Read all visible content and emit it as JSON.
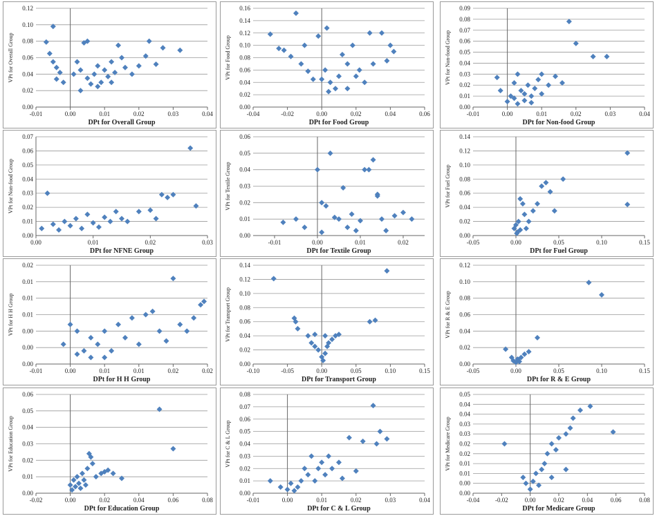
{
  "chart_data": [
    {
      "type": "scatter",
      "xlabel": "DPt for Overall Group",
      "ylabel": "VPt for Overall Group",
      "color": "#4f81bd",
      "grid": true,
      "xlim": [
        -0.01,
        0.04
      ],
      "xticks": [
        -0.01,
        {
          "value": 0,
          "label": "0.00"
        },
        0.01,
        0.02,
        0.03,
        0.04
      ],
      "ylim": [
        0,
        0.12
      ],
      "yticks": [
        {
          "value": 0,
          "label": "0.00"
        },
        0.02,
        0.04,
        0.06,
        0.08,
        {
          "value": 0.1,
          "label": "0.10"
        },
        0.12
      ],
      "x": [
        -0.005,
        -0.007,
        -0.006,
        -0.005,
        -0.004,
        -0.003,
        -0.004,
        -0.002,
        0.002,
        0.003,
        0.004,
        0.005,
        0.003,
        0.005,
        0.006,
        0.007,
        0.008,
        0.009,
        0.01,
        0.011,
        0.012,
        0.013,
        0.014,
        0.015,
        0.016,
        0.018,
        0.02,
        0.022,
        0.023,
        0.025,
        0.027,
        0.032,
        0.001,
        0.008,
        0.012
      ],
      "values": [
        0.098,
        0.079,
        0.065,
        0.055,
        0.048,
        0.042,
        0.034,
        0.03,
        0.055,
        0.045,
        0.078,
        0.08,
        0.02,
        0.035,
        0.028,
        0.04,
        0.05,
        0.03,
        0.045,
        0.037,
        0.055,
        0.042,
        0.075,
        0.06,
        0.048,
        0.04,
        0.05,
        0.062,
        0.08,
        0.052,
        0.072,
        0.069,
        0.04,
        0.025,
        0.03
      ]
    },
    {
      "type": "scatter",
      "xlabel": "DPt for Food Group",
      "ylabel": "VPt for Food Group",
      "color": "#4f81bd",
      "grid": true,
      "xlim": [
        -0.04,
        0.06
      ],
      "xticks": [
        -0.04,
        -0.02,
        {
          "value": 0,
          "label": "0.00"
        },
        0.02,
        0.04,
        0.06
      ],
      "ylim": [
        0,
        0.16
      ],
      "yticks": [
        {
          "value": 0,
          "label": "0.00"
        },
        0.02,
        0.04,
        0.06,
        0.08,
        {
          "value": 0.1,
          "label": "0.10"
        },
        0.12,
        0.14,
        0.16
      ],
      "x": [
        -0.03,
        -0.015,
        -0.022,
        -0.018,
        -0.012,
        -0.008,
        -0.005,
        -0.01,
        -0.002,
        0.003,
        0.002,
        0.005,
        0.008,
        0.01,
        0.012,
        0.015,
        0.018,
        0.02,
        0.022,
        0.025,
        0.028,
        0.03,
        0.035,
        0.04,
        0.042,
        0.038,
        0.004,
        0,
        -0.025,
        0.015
      ],
      "values": [
        0.118,
        0.152,
        0.092,
        0.082,
        0.07,
        0.058,
        0.045,
        0.1,
        0.115,
        0.128,
        0.06,
        0.04,
        0.03,
        0.05,
        0.085,
        0.07,
        0.1,
        0.05,
        0.06,
        0.04,
        0.12,
        0.07,
        0.12,
        0.1,
        0.09,
        0.075,
        0.025,
        0.045,
        0.095,
        0.03
      ]
    },
    {
      "type": "scatter",
      "xlabel": "DPt for Non-food Group",
      "ylabel": "VPt for Non-food Group",
      "color": "#4f81bd",
      "grid": true,
      "xlim": [
        -0.01,
        0.04
      ],
      "xticks": [
        -0.01,
        {
          "value": 0,
          "label": "0.00"
        },
        0.01,
        0.02,
        0.03,
        0.04
      ],
      "ylim": [
        0,
        0.09
      ],
      "yticks": [
        {
          "value": 0,
          "label": "0.00"
        },
        0.01,
        0.02,
        0.03,
        0.04,
        0.05,
        0.06,
        0.07,
        0.08,
        0.09
      ],
      "x": [
        -0.003,
        -0.002,
        0,
        0.001,
        0.002,
        0.002,
        0.003,
        0.004,
        0.005,
        0.005,
        0.006,
        0.007,
        0.008,
        0.009,
        0.01,
        0.01,
        0.012,
        0.014,
        0.016,
        0.018,
        0.02,
        0.025,
        0.029,
        0.003,
        0.007
      ],
      "values": [
        0.027,
        0.015,
        0.005,
        0.01,
        0.022,
        0.008,
        0.003,
        0.015,
        0.012,
        0.006,
        0.02,
        0.01,
        0.017,
        0.025,
        0.03,
        0.012,
        0.02,
        0.028,
        0.022,
        0.078,
        0.058,
        0.046,
        0.046,
        0.03,
        0.004
      ]
    },
    {
      "type": "scatter",
      "xlabel": "DPt for NFNE Group",
      "ylabel": "VPt for Non-food Group",
      "color": "#4f81bd",
      "grid": true,
      "xlim": [
        0,
        0.03
      ],
      "xticks": [
        {
          "value": 0,
          "label": "0.00"
        },
        0.01,
        0.02,
        0.03
      ],
      "ylim": [
        0,
        0.07
      ],
      "yticks": [
        {
          "value": 0,
          "label": "0.00"
        },
        0.01,
        0.02,
        0.03,
        0.04,
        0.05,
        0.06,
        0.07
      ],
      "x": [
        0.001,
        0.002,
        0.003,
        0.004,
        0.005,
        0.006,
        0.007,
        0.008,
        0.009,
        0.01,
        0.011,
        0.012,
        0.013,
        0.014,
        0.015,
        0.016,
        0.018,
        0.02,
        0.021,
        0.023,
        0.024,
        0.028,
        0.022,
        0.027
      ],
      "values": [
        0.005,
        0.03,
        0.008,
        0.004,
        0.01,
        0.007,
        0.012,
        0.005,
        0.015,
        0.009,
        0.006,
        0.013,
        0.01,
        0.017,
        0.012,
        0.01,
        0.017,
        0.018,
        0.012,
        0.027,
        0.029,
        0.021,
        0.029,
        0.062
      ]
    },
    {
      "type": "scatter",
      "xlabel": "DPt for Textile Group",
      "ylabel": "VPt for Textile Group",
      "color": "#4f81bd",
      "grid": true,
      "xlim": [
        -0.015,
        0.025
      ],
      "xticks": [
        -0.01,
        {
          "value": 0,
          "label": "0.00"
        },
        0.01,
        0.02
      ],
      "ylim": [
        0,
        0.06
      ],
      "yticks": [
        {
          "value": 0,
          "label": "0.00"
        },
        0.01,
        0.02,
        0.03,
        0.04,
        0.05,
        0.06
      ],
      "x": [
        -0.008,
        -0.005,
        -0.003,
        0,
        0.001,
        0.002,
        0.003,
        0.004,
        0.005,
        0.006,
        0.007,
        0.008,
        0.01,
        0.012,
        0.013,
        0.014,
        0.015,
        0.016,
        0.018,
        0.02,
        0.022,
        0.011,
        0.014,
        0.001,
        0.009
      ],
      "values": [
        0.008,
        0.01,
        0.005,
        0.04,
        0.002,
        0.018,
        0.05,
        0.011,
        0.01,
        0.029,
        0.005,
        0.013,
        0.009,
        0.04,
        0.046,
        0.025,
        0.01,
        0.003,
        0.012,
        0.014,
        0.01,
        0.04,
        0.024,
        0.02,
        0.003
      ]
    },
    {
      "type": "scatter",
      "xlabel": "DPt for Fuel Group",
      "ylabel": "VPt for Fuel Group",
      "color": "#4f81bd",
      "grid": true,
      "xlim": [
        -0.05,
        0.15
      ],
      "xticks": [
        -0.05,
        {
          "value": 0,
          "label": "0.00"
        },
        0.05,
        {
          "value": 0.1,
          "label": "0.10"
        },
        0.15
      ],
      "ylim": [
        0,
        0.14
      ],
      "yticks": [
        {
          "value": 0,
          "label": "0.00"
        },
        0.02,
        0.04,
        0.06,
        0.08,
        {
          "value": 0.1,
          "label": "0.10"
        },
        0.12,
        0.14
      ],
      "x": [
        -0.002,
        0,
        0.002,
        0.003,
        0.005,
        0.008,
        0.01,
        0.012,
        0.015,
        0.02,
        0.025,
        0.03,
        0.035,
        0.04,
        0.045,
        0.055,
        0.13,
        0.13,
        0.005,
        0.001
      ],
      "values": [
        0.01,
        0.015,
        0.005,
        0.02,
        0.052,
        0.045,
        0.03,
        0.01,
        0.02,
        0.035,
        0.045,
        0.07,
        0.075,
        0.062,
        0.035,
        0.08,
        0.117,
        0.044,
        0.008,
        0.003
      ]
    },
    {
      "type": "scatter",
      "xlabel": "DPt for H H Group",
      "ylabel": "VPt for H H Group",
      "color": "#4f81bd",
      "grid": true,
      "xlim": [
        -0.005,
        0.02
      ],
      "xticks": [
        {
          "value": -0.005,
          "label": "-0.01"
        },
        {
          "value": 0,
          "label": "0.00"
        },
        {
          "value": 0.005,
          "label": "0.01"
        },
        0.01,
        {
          "value": 0.015,
          "label": "0.02"
        },
        0.02
      ],
      "ylim": [
        0,
        0.015
      ],
      "yticks": [
        {
          "value": 0,
          "label": "0.00"
        },
        {
          "value": 0.0025,
          "label": "0.00"
        },
        {
          "value": 0.005,
          "label": "0.00"
        },
        {
          "value": 0.0075,
          "label": "0.01"
        },
        0.01,
        {
          "value": 0.0125,
          "label": "0.01"
        },
        {
          "value": 0.015,
          "label": "0.02"
        }
      ],
      "x": [
        -0.001,
        0,
        0.001,
        0.002,
        0.003,
        0.003,
        0.004,
        0.005,
        0.005,
        0.006,
        0.007,
        0.008,
        0.009,
        0.01,
        0.011,
        0.012,
        0.013,
        0.014,
        0.015,
        0.016,
        0.017,
        0.018,
        0.019,
        0.0195,
        0.001
      ],
      "values": [
        0.003,
        0.006,
        0.005,
        0.002,
        0.001,
        0.004,
        0.003,
        0.005,
        0.001,
        0.002,
        0.006,
        0.004,
        0.007,
        0.003,
        0.0075,
        0.008,
        0.005,
        0.0035,
        0.013,
        0.006,
        0.005,
        0.007,
        0.009,
        0.0095,
        0.0015
      ]
    },
    {
      "type": "scatter",
      "xlabel": "DPt for Transport Group",
      "ylabel": "VPt for Transport Group",
      "color": "#4f81bd",
      "grid": true,
      "xlim": [
        -0.1,
        0.15
      ],
      "xticks": [
        {
          "value": -0.1,
          "label": "-0.10"
        },
        -0.05,
        {
          "value": 0,
          "label": "0.00"
        },
        0.05,
        {
          "value": 0.1,
          "label": "0.10"
        },
        0.15
      ],
      "ylim": [
        0,
        0.14
      ],
      "yticks": [
        {
          "value": 0,
          "label": "0.00"
        },
        0.02,
        0.04,
        0.06,
        0.08,
        {
          "value": 0.1,
          "label": "0.10"
        },
        0.12,
        0.14
      ],
      "x": [
        -0.07,
        -0.04,
        -0.038,
        -0.035,
        -0.02,
        -0.015,
        -0.01,
        -0.005,
        0,
        0.002,
        0.005,
        0.008,
        0.01,
        0.015,
        0.02,
        0.025,
        0.07,
        0.078,
        0.095,
        -0.01,
        0.005
      ],
      "values": [
        0.121,
        0.065,
        0.06,
        0.05,
        0.04,
        0.03,
        0.025,
        0.02,
        0.01,
        0.005,
        0.015,
        0.025,
        0.03,
        0.035,
        0.04,
        0.042,
        0.06,
        0.062,
        0.132,
        0.042,
        0.04
      ]
    },
    {
      "type": "scatter",
      "xlabel": "DPt for R & E Group",
      "ylabel": "VPt for R & E Group",
      "color": "#4f81bd",
      "grid": true,
      "xlim": [
        -0.05,
        0.15
      ],
      "xticks": [
        -0.05,
        {
          "value": 0,
          "label": "0.00"
        },
        0.05,
        {
          "value": 0.1,
          "label": "0.10"
        },
        0.15
      ],
      "ylim": [
        0,
        0.12
      ],
      "yticks": [
        {
          "value": 0,
          "label": "0.00"
        },
        0.02,
        0.04,
        0.06,
        0.08,
        {
          "value": 0.1,
          "label": "0.10"
        },
        0.12
      ],
      "x": [
        -0.012,
        -0.005,
        -0.003,
        0,
        0.002,
        0.004,
        0.006,
        0.01,
        0.015,
        0.025,
        0.085,
        0.1
      ],
      "values": [
        0.018,
        0.008,
        0.004,
        0.002,
        0.006,
        0.003,
        0.008,
        0.012,
        0.015,
        0.032,
        0.099,
        0.084
      ]
    },
    {
      "type": "scatter",
      "xlabel": "DPt for Education Group",
      "ylabel": "VPt for Education Group",
      "color": "#4f81bd",
      "grid": true,
      "xlim": [
        -0.02,
        0.08
      ],
      "xticks": [
        -0.02,
        {
          "value": 0,
          "label": "0.00"
        },
        0.02,
        0.04,
        0.06,
        0.08
      ],
      "ylim": [
        0,
        0.06
      ],
      "yticks": [
        {
          "value": 0,
          "label": "0.00"
        },
        0.01,
        0.02,
        0.03,
        0.04,
        0.05,
        0.06
      ],
      "x": [
        0,
        0.001,
        0.002,
        0.003,
        0.004,
        0.005,
        0.006,
        0.007,
        0.008,
        0.01,
        0.012,
        0.013,
        0.015,
        0.018,
        0.02,
        0.022,
        0.025,
        0.03,
        0.052,
        0.06,
        0.011,
        0.009
      ],
      "values": [
        0.005,
        0.002,
        0.008,
        0.004,
        0.01,
        0.006,
        0.003,
        0.012,
        0.008,
        0.015,
        0.022,
        0.018,
        0.01,
        0.012,
        0.013,
        0.014,
        0.012,
        0.009,
        0.051,
        0.027,
        0.024,
        0.005
      ]
    },
    {
      "type": "scatter",
      "xlabel": "DPt for C & L Group",
      "ylabel": "VPt for C & L Group",
      "color": "#4f81bd",
      "grid": true,
      "xlim": [
        -0.01,
        0.04
      ],
      "xticks": [
        -0.01,
        {
          "value": 0,
          "label": "0.00"
        },
        0.01,
        0.02,
        0.03,
        0.04
      ],
      "ylim": [
        0,
        0.08
      ],
      "yticks": [
        {
          "value": 0,
          "label": "0.00"
        },
        0.01,
        0.02,
        0.03,
        0.04,
        0.05,
        0.06,
        0.07,
        0.08
      ],
      "x": [
        -0.005,
        -0.002,
        0,
        0.001,
        0.002,
        0.003,
        0.004,
        0.005,
        0.006,
        0.007,
        0.008,
        0.009,
        0.01,
        0.011,
        0.012,
        0.013,
        0.015,
        0.016,
        0.018,
        0.02,
        0.022,
        0.025,
        0.026,
        0.027,
        0.029
      ],
      "values": [
        0.01,
        0.005,
        0.003,
        0.008,
        0.002,
        0.005,
        0.01,
        0.02,
        0.015,
        0.03,
        0.01,
        0.02,
        0.025,
        0.015,
        0.03,
        0.02,
        0.025,
        0.012,
        0.045,
        0.018,
        0.042,
        0.071,
        0.04,
        0.05,
        0.044
      ]
    },
    {
      "type": "scatter",
      "xlabel": "DPt for Medicare Group",
      "ylabel": "VPt for Medicare Group",
      "color": "#4f81bd",
      "grid": true,
      "xlim": [
        -0.04,
        0.08
      ],
      "xticks": [
        -0.04,
        -0.02,
        {
          "value": 0,
          "label": "0.00"
        },
        0.02,
        0.04,
        0.06,
        0.08
      ],
      "ylim": [
        0,
        0.05
      ],
      "yticks": [
        {
          "value": 0,
          "label": "0.00"
        },
        {
          "value": 0.005,
          "label": "0.00"
        },
        0.01,
        {
          "value": 0.015,
          "label": "0.01"
        },
        0.02,
        {
          "value": 0.025,
          "label": "0.02"
        },
        0.03,
        {
          "value": 0.035,
          "label": "0.03"
        },
        0.04,
        {
          "value": 0.045,
          "label": "0.04"
        },
        0.05
      ],
      "x": [
        -0.018,
        -0.005,
        -0.003,
        0,
        0.002,
        0.004,
        0.006,
        0.008,
        0.01,
        0.012,
        0.015,
        0.018,
        0.02,
        0.025,
        0.028,
        0.03,
        0.035,
        0.042,
        0.058,
        0.025,
        0.015
      ],
      "values": [
        0.025,
        0.008,
        0.005,
        0.002,
        0.006,
        0.01,
        0.004,
        0.012,
        0.015,
        0.02,
        0.025,
        0.022,
        0.028,
        0.03,
        0.033,
        0.038,
        0.042,
        0.044,
        0.031,
        0.012,
        0.008
      ]
    }
  ]
}
